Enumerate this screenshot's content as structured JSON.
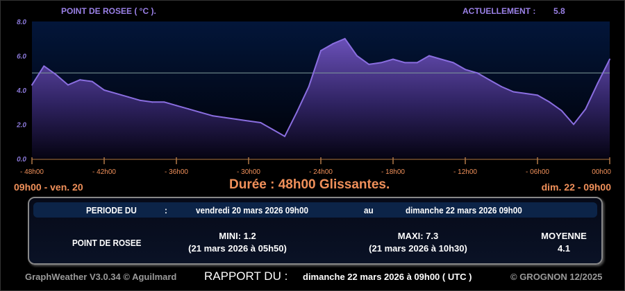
{
  "header": {
    "title": "POINT DE ROSEE ( °C ).",
    "current_label": "ACTUELLEMENT :",
    "current_value": "5.8"
  },
  "chart_data": {
    "type": "area",
    "title": "POINT DE ROSEE ( °C ).",
    "x_ticks": [
      "- 48h00",
      "- 42h00",
      "- 36h00",
      "- 30h00",
      "- 24h00",
      "- 18h00",
      "- 12h00",
      "- 06h00",
      "00h00"
    ],
    "y_ticks": [
      "0.0",
      "2.0",
      "4.0",
      "6.0",
      "8.0"
    ],
    "ylim": [
      0,
      8
    ],
    "xlim": [
      -48,
      0
    ],
    "reference_line": 5.0,
    "grid": false,
    "line_color": "#8a6ee0",
    "x": [
      -48,
      -47,
      -46,
      -45,
      -44,
      -43,
      -42,
      -41,
      -40,
      -39,
      -38,
      -37,
      -36,
      -35,
      -34,
      -33,
      -32,
      -31,
      -30,
      -29,
      -28,
      -27,
      -26,
      -25,
      -24,
      -23,
      -22,
      -21,
      -20,
      -19,
      -18,
      -17,
      -16,
      -15,
      -14,
      -13,
      -12,
      -11,
      -10,
      -9,
      -8,
      -7,
      -6,
      -5,
      -4,
      -3,
      -2,
      -1,
      0
    ],
    "values": [
      4.3,
      5.4,
      4.9,
      4.3,
      4.6,
      4.5,
      4.0,
      3.8,
      3.6,
      3.4,
      3.3,
      3.3,
      3.1,
      2.9,
      2.7,
      2.5,
      2.4,
      2.3,
      2.2,
      2.1,
      1.7,
      1.3,
      2.7,
      4.2,
      6.3,
      6.7,
      7.0,
      6.0,
      5.5,
      5.6,
      5.8,
      5.6,
      5.6,
      6.0,
      5.8,
      5.6,
      5.2,
      5.0,
      4.6,
      4.2,
      3.9,
      3.8,
      3.7,
      3.3,
      2.8,
      2.0,
      2.9,
      4.4,
      5.8
    ]
  },
  "range": {
    "start": "09h00 - ven. 20",
    "end": "dim. 22 - 09h00",
    "duration": "Durée : 48h00 Glissantes."
  },
  "panel": {
    "period_label": "PERIODE DU",
    "colon": ":",
    "period_start": "vendredi 20 mars 2026 09h00",
    "au": "au",
    "period_end": "dimanche 22 mars 2026 09h00",
    "row_label": "POINT DE ROSEE",
    "mini": "MINI:  1.2",
    "mini_date": "(21 mars 2026 à 05h50)",
    "maxi": "MAXI:  7.3",
    "maxi_date": "(21 mars 2026 à 10h30)",
    "moyenne_label": "MOYENNE",
    "moyenne": "4.1"
  },
  "footer": {
    "app": "GraphWeather V3.0.34 © Aguilmard",
    "report_label": "RAPPORT DU :",
    "report_date": "dimanche 22 mars 2026 à 09h00 ( UTC )",
    "copyright": "© GROGNON 12/2025"
  }
}
